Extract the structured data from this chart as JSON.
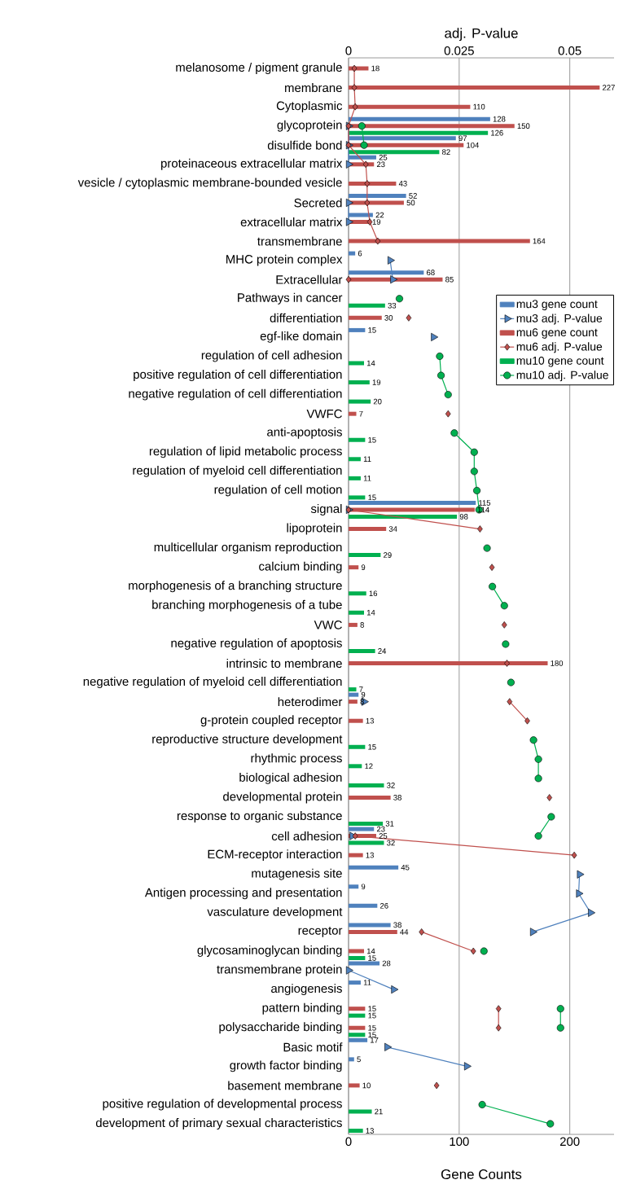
{
  "chart_data": {
    "type": "bar",
    "orientation": "horizontal",
    "categories": [
      "melanosome / pigment granule",
      "membrane",
      "Cytoplasmic",
      "glycoprotein",
      "disulfide bond",
      "proteinaceous extracellular matrix",
      "vesicle / cytoplasmic membrane-bounded vesicle",
      "Secreted",
      "extracellular matrix",
      "transmembrane",
      "MHC protein complex",
      "Extracellular",
      "Pathways in cancer",
      "differentiation",
      "egf-like domain",
      "regulation of cell adhesion",
      "positive regulation of cell differentiation",
      "negative regulation of cell differentiation",
      "VWFC",
      "anti-apoptosis",
      "regulation of lipid metabolic process",
      "regulation of myeloid cell differentiation",
      "regulation of cell motion",
      "signal",
      "lipoprotein",
      "multicellular organism reproduction",
      "calcium binding",
      "morphogenesis of a branching structure",
      "branching morphogenesis of a tube",
      "VWC",
      "negative regulation of apoptosis",
      "intrinsic to membrane",
      "negative regulation of myeloid cell differentiation",
      "heterodimer",
      "g-protein coupled receptor",
      "reproductive structure development",
      "rhythmic process",
      "biological adhesion",
      "developmental protein",
      "response to organic substance",
      "cell adhesion",
      "ECM-receptor interaction",
      "mutagenesis site",
      "Antigen processing and presentation",
      "vasculature development",
      "receptor",
      "glycosaminoglycan binding",
      "transmembrane protein",
      "angiogenesis",
      "pattern binding",
      "polysaccharide binding",
      "Basic motif",
      "growth factor binding",
      "basement membrane",
      "positive regulation of developmental process",
      "development of primary sexual characteristics"
    ],
    "xlabel": "Gene Counts",
    "x2label": "adj. P-value",
    "xlim": [
      0,
      240
    ],
    "xticks": [
      0,
      100,
      200
    ],
    "x2lim": [
      0,
      0.06
    ],
    "x2ticks": [
      0,
      0.025,
      0.05
    ],
    "grid": "x",
    "legend": "right",
    "series": [
      {
        "name": "mu3 gene count",
        "color": "#4f81bd",
        "values": [
          null,
          null,
          null,
          128,
          97,
          25,
          null,
          52,
          22,
          null,
          6,
          68,
          null,
          null,
          15,
          null,
          null,
          null,
          null,
          null,
          null,
          null,
          null,
          115,
          null,
          null,
          null,
          null,
          null,
          null,
          null,
          null,
          null,
          9,
          null,
          null,
          null,
          null,
          null,
          null,
          23,
          null,
          45,
          9,
          26,
          38,
          null,
          28,
          11,
          null,
          null,
          17,
          5,
          null,
          null,
          null
        ],
        "value_labels": [
          null,
          null,
          null,
          "128",
          "97",
          "25",
          null,
          "52",
          "22",
          null,
          "6",
          "68",
          null,
          null,
          "15",
          null,
          null,
          null,
          null,
          null,
          null,
          null,
          null,
          "115",
          null,
          null,
          null,
          null,
          null,
          null,
          null,
          null,
          null,
          "9",
          null,
          null,
          null,
          null,
          null,
          null,
          "23",
          null,
          "45",
          "9",
          "26",
          "38",
          null,
          "28",
          "11",
          null,
          null,
          "17",
          "5",
          null,
          null,
          null
        ]
      },
      {
        "name": "mu3 adj. P-value",
        "type": "line",
        "axis": "x2",
        "marker": "triangle",
        "color": "#4f81bd",
        "values": [
          null,
          null,
          null,
          0,
          0,
          0,
          null,
          0,
          0,
          null,
          0.0094,
          0.01,
          null,
          null,
          0.0192,
          null,
          null,
          null,
          null,
          null,
          null,
          null,
          null,
          0,
          null,
          null,
          null,
          null,
          null,
          null,
          null,
          null,
          null,
          0.0035,
          null,
          null,
          null,
          null,
          null,
          null,
          0.0008,
          null,
          0.0522,
          0.052,
          0.0547,
          0.0416,
          null,
          0,
          0.0102,
          null,
          null,
          0.0087,
          0.0267,
          null,
          null,
          null
        ]
      },
      {
        "name": "mu6 gene count",
        "color": "#c0504d",
        "values": [
          18,
          227,
          110,
          150,
          104,
          23,
          43,
          50,
          19,
          164,
          null,
          85,
          null,
          30,
          null,
          null,
          null,
          null,
          7,
          null,
          null,
          null,
          null,
          114,
          34,
          null,
          9,
          null,
          null,
          8,
          null,
          180,
          null,
          8,
          13,
          null,
          null,
          null,
          38,
          null,
          25,
          13,
          null,
          null,
          null,
          44,
          14,
          null,
          null,
          15,
          15,
          null,
          null,
          10,
          null,
          null
        ],
        "value_labels": [
          "18",
          "227",
          "110",
          "150",
          "104",
          "23",
          "43",
          "50",
          "19",
          "164",
          null,
          "85",
          null,
          "30",
          null,
          null,
          null,
          null,
          "7",
          null,
          null,
          null,
          null,
          "114",
          "34",
          null,
          "9",
          null,
          null,
          "8",
          null,
          "180",
          null,
          "8",
          "13",
          null,
          null,
          null,
          "38",
          null,
          "25",
          "13",
          null,
          null,
          null,
          "44",
          "14",
          null,
          null,
          "15",
          "15",
          null,
          null,
          "10",
          null,
          null
        ]
      },
      {
        "name": "mu6 adj. P-value",
        "type": "line",
        "axis": "x2",
        "marker": "diamond",
        "color": "#c0504d",
        "values": [
          0.0013,
          0.0013,
          0.0015,
          0,
          0,
          0.0039,
          0.0042,
          0.0042,
          0.0048,
          0.0066,
          null,
          0,
          null,
          0.0136,
          null,
          null,
          null,
          null,
          0.0225,
          null,
          null,
          null,
          null,
          0,
          0.0297,
          null,
          0.0324,
          null,
          null,
          0.0352,
          null,
          0.0358,
          null,
          0.0364,
          0.0404,
          null,
          null,
          null,
          0.0454,
          null,
          0.0015,
          0.051,
          null,
          null,
          null,
          0.0165,
          0.0282,
          null,
          null,
          0.0339,
          0.0339,
          null,
          null,
          0.0199,
          null,
          null
        ]
      },
      {
        "name": "mu10 gene count",
        "color": "#00b050",
        "values": [
          null,
          null,
          null,
          126,
          82,
          null,
          null,
          null,
          null,
          null,
          null,
          null,
          33,
          null,
          null,
          14,
          19,
          20,
          null,
          15,
          11,
          11,
          15,
          98,
          null,
          29,
          null,
          16,
          14,
          null,
          24,
          null,
          7,
          null,
          null,
          15,
          12,
          32,
          null,
          31,
          32,
          null,
          null,
          null,
          null,
          null,
          15,
          null,
          null,
          15,
          15,
          null,
          null,
          null,
          21,
          13
        ],
        "value_labels": [
          null,
          null,
          null,
          "126",
          "82",
          null,
          null,
          null,
          null,
          null,
          null,
          null,
          "33",
          null,
          null,
          "14",
          "19",
          "20",
          null,
          "15",
          "11",
          "11",
          "15",
          "98",
          null,
          "29",
          null,
          "16",
          "14",
          null,
          "24",
          null,
          "7",
          null,
          null,
          "15",
          "12",
          "32",
          null,
          "31",
          "32",
          null,
          null,
          null,
          null,
          null,
          "15",
          null,
          null,
          "15",
          "15",
          null,
          null,
          null,
          "21",
          "13"
        ]
      },
      {
        "name": "mu10 adj. P-value",
        "type": "line",
        "axis": "x2",
        "marker": "circle",
        "color": "#00b050",
        "values": [
          null,
          null,
          null,
          0.003,
          0.0035,
          null,
          null,
          null,
          null,
          null,
          null,
          null,
          0.0115,
          null,
          null,
          0.0206,
          0.0209,
          0.0225,
          null,
          0.0239,
          0.0284,
          0.0284,
          0.029,
          0.0295,
          null,
          0.0313,
          null,
          0.0325,
          0.0352,
          null,
          0.0355,
          null,
          0.0367,
          null,
          null,
          0.0418,
          0.0429,
          0.0429,
          null,
          0.0458,
          0.0429,
          null,
          null,
          null,
          null,
          null,
          0.0306,
          null,
          null,
          0.0479,
          0.0479,
          null,
          null,
          null,
          0.0302,
          0.0456
        ]
      }
    ]
  }
}
